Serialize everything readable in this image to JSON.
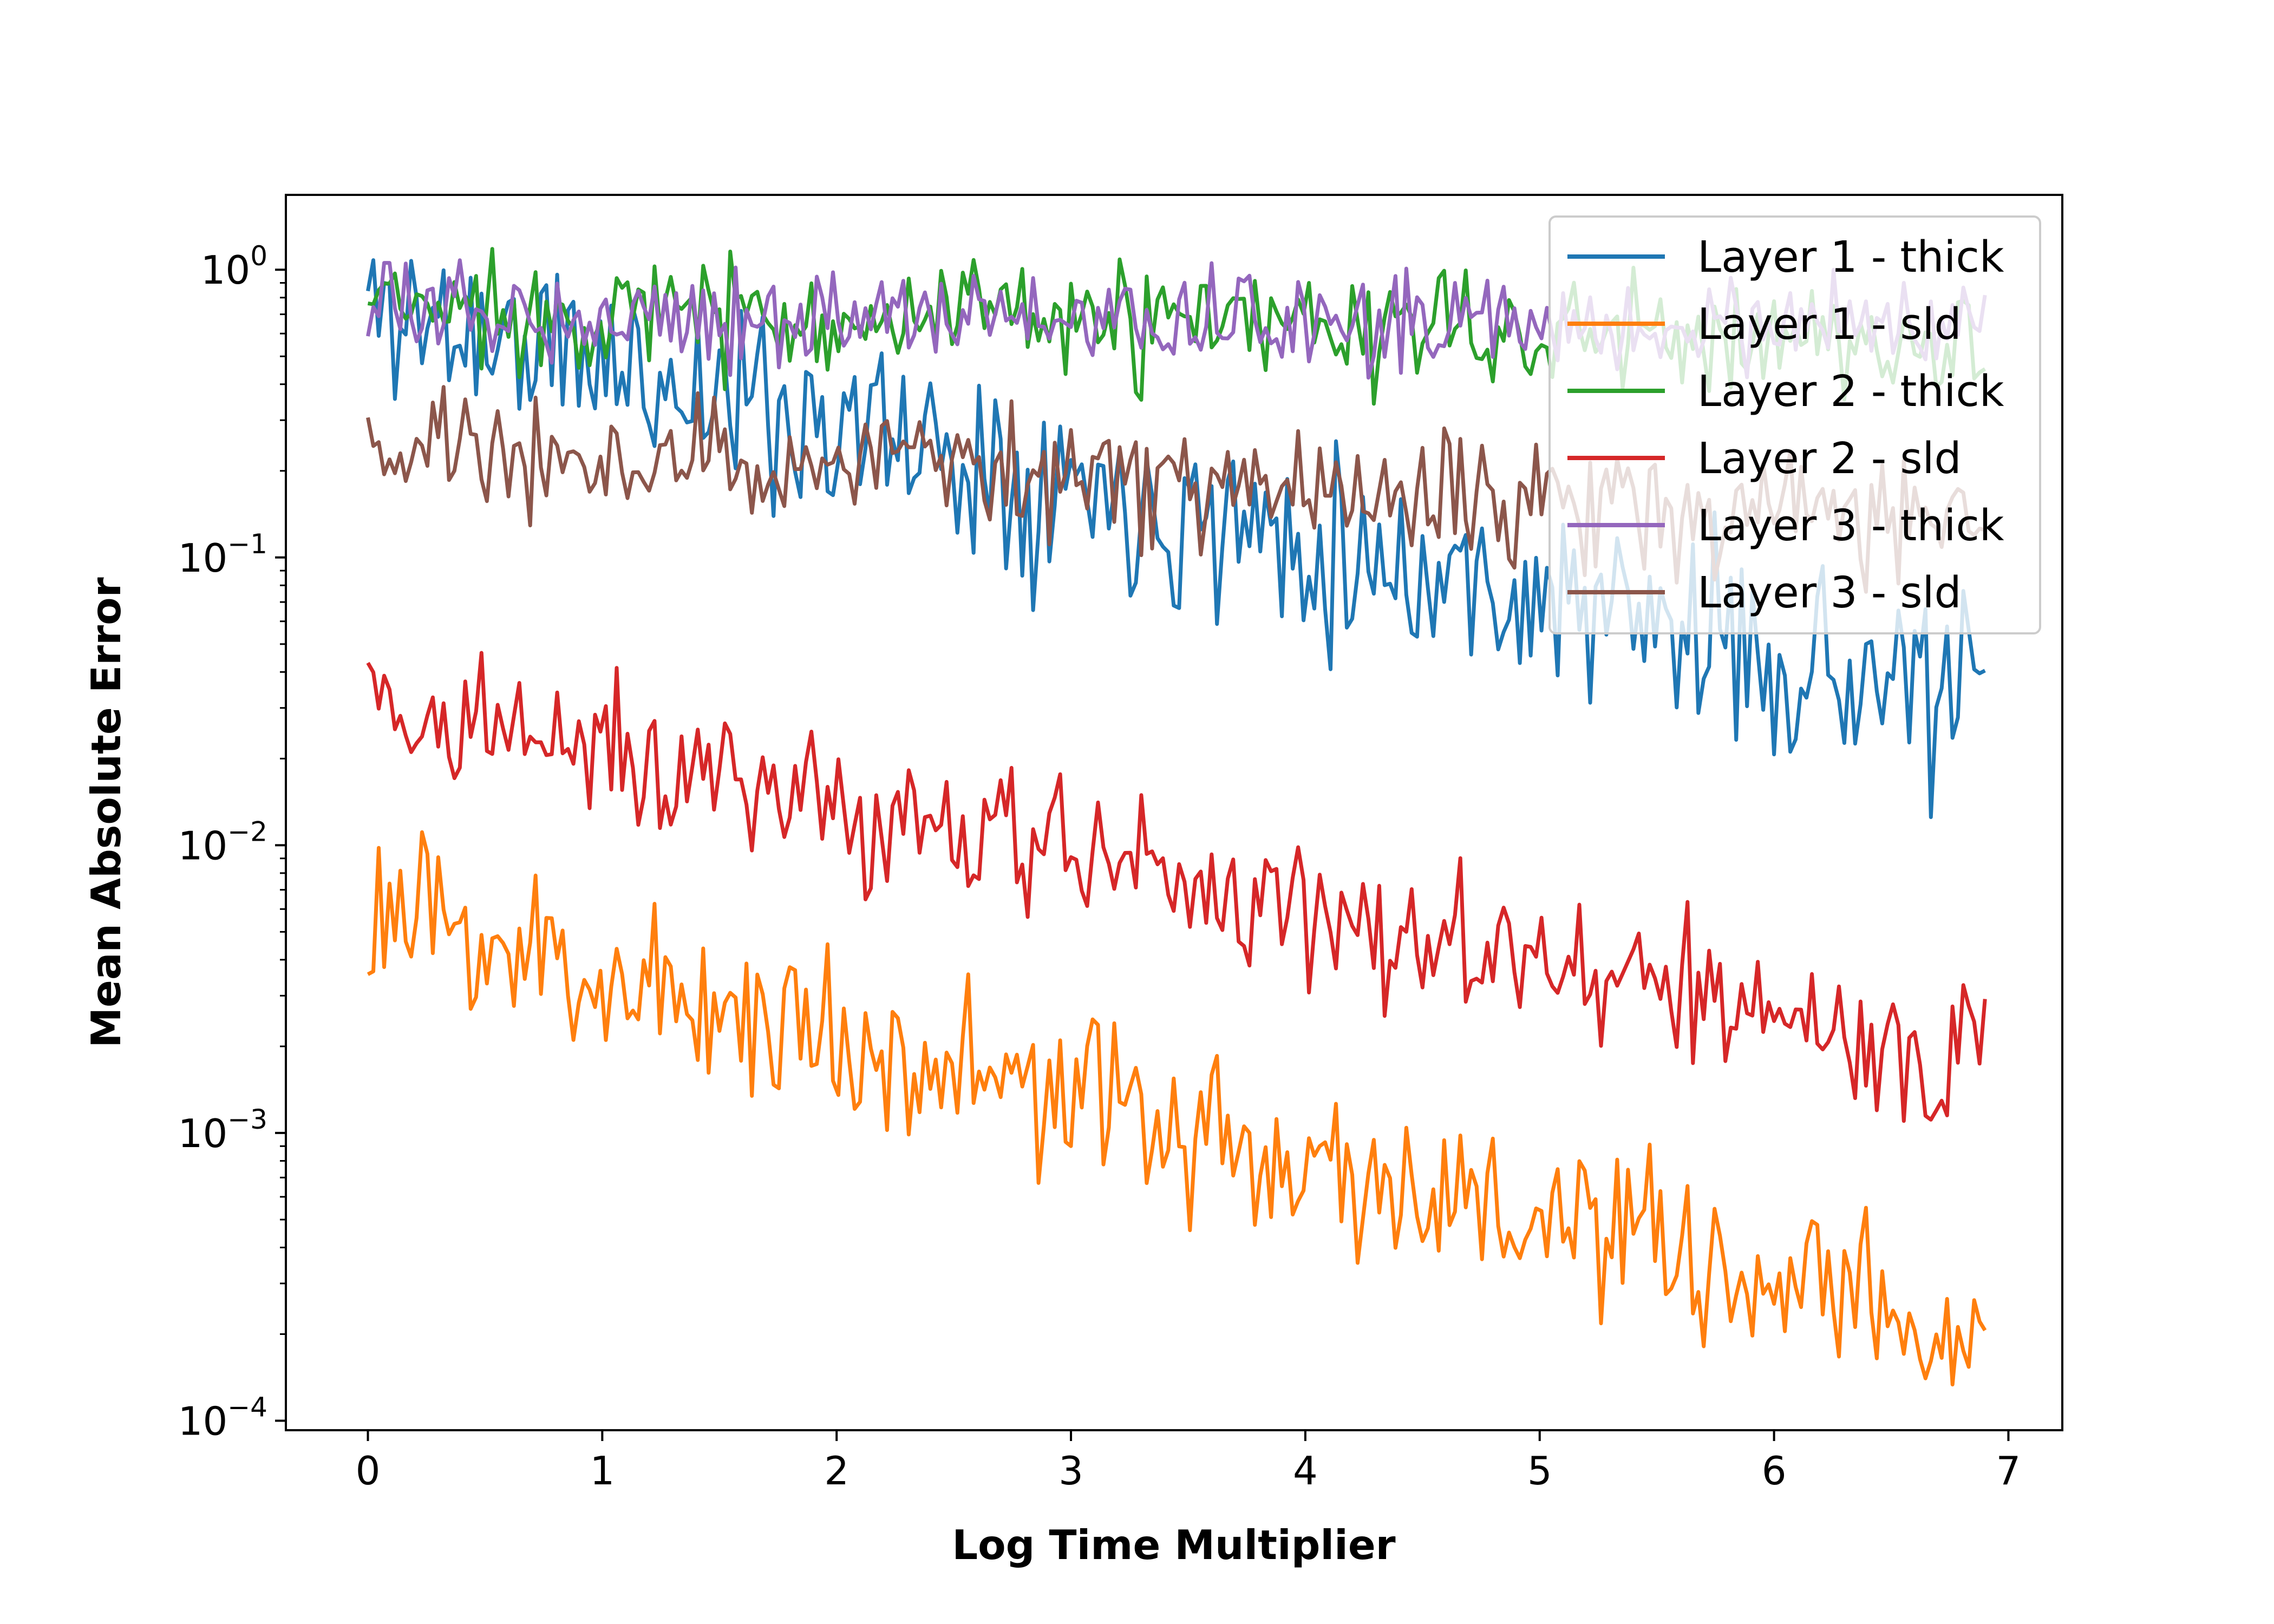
{
  "chart_data": {
    "type": "line",
    "title": "",
    "xlabel": "Log Time Multiplier",
    "ylabel": "Mean Absolute Error",
    "xlim": [
      -0.35,
      7.23
    ],
    "ylim": [
      9.27e-05,
      1.82
    ],
    "yscale": "log",
    "grid": false,
    "legend_position": "top-right",
    "x_ticks": [
      {
        "value": 0,
        "label": "0"
      },
      {
        "value": 1,
        "label": "1"
      },
      {
        "value": 2,
        "label": "2"
      },
      {
        "value": 3,
        "label": "3"
      },
      {
        "value": 4,
        "label": "4"
      },
      {
        "value": 5,
        "label": "5"
      },
      {
        "value": 6,
        "label": "6"
      },
      {
        "value": 7,
        "label": "7"
      }
    ],
    "y_ticks": [
      {
        "value": 1,
        "base": "10",
        "exp": "0"
      },
      {
        "value": 0.1,
        "base": "10",
        "exp": "−1"
      },
      {
        "value": 0.01,
        "base": "10",
        "exp": "−2"
      },
      {
        "value": 0.001,
        "base": "10",
        "exp": "−3"
      },
      {
        "value": 0.0001,
        "base": "10",
        "exp": "−4"
      }
    ],
    "x_range": [
      0,
      6.9
    ],
    "points_per_series": 300,
    "series": [
      {
        "name": "Layer 1 - thick",
        "color": "#1f77b4",
        "start": 0.75,
        "end": 0.03,
        "noise": 0.17,
        "seed": 11
      },
      {
        "name": "Layer 1 - sld",
        "color": "#ff7f0e",
        "start": 0.0058,
        "end": 0.00019,
        "noise": 0.15,
        "seed": 23
      },
      {
        "name": "Layer 2 - thick",
        "color": "#2ca02c",
        "start": 0.75,
        "end": 0.55,
        "noise": 0.1,
        "seed": 37
      },
      {
        "name": "Layer 2 - sld",
        "color": "#d62728",
        "start": 0.032,
        "end": 0.0017,
        "noise": 0.13,
        "seed": 41
      },
      {
        "name": "Layer 3 - thick",
        "color": "#9467bd",
        "start": 0.72,
        "end": 0.62,
        "noise": 0.08,
        "seed": 53
      },
      {
        "name": "Layer 3 - sld",
        "color": "#8c564b",
        "start": 0.24,
        "end": 0.14,
        "noise": 0.11,
        "seed": 67
      }
    ]
  }
}
